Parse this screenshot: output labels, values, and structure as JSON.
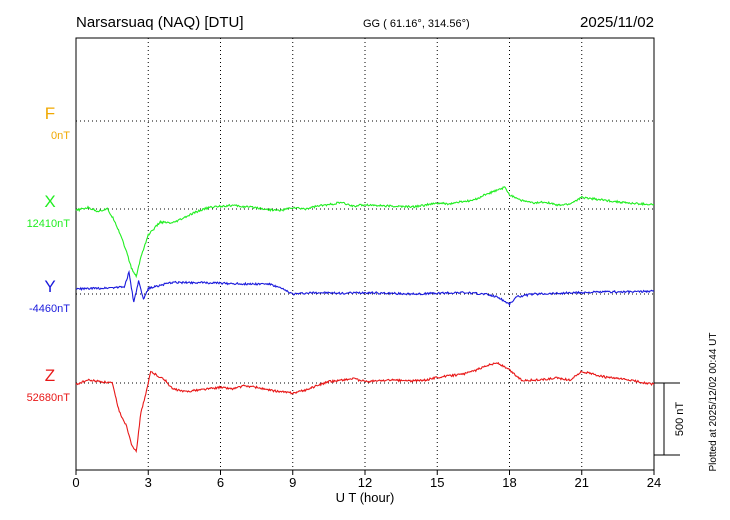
{
  "header": {
    "station": "Narsarsuaq (NAQ)  [DTU]",
    "coords": "GG ( 61.16°, 314.56°)",
    "date": "2025/11/02"
  },
  "side_note": "Plotted at 2025/12/02 00:44 UT",
  "colors": {
    "F": "#f0a800",
    "X": "#22ee22",
    "Y": "#1a1adc",
    "Z": "#e81818"
  },
  "chart_data": {
    "type": "line",
    "xlabel": "U T (hour)",
    "xlim": [
      0,
      24
    ],
    "xticks": [
      "0",
      "3",
      "6",
      "9",
      "12",
      "15",
      "18",
      "21",
      "24"
    ],
    "grid": true,
    "scale_bar": {
      "label": "500 nT",
      "value_nT": 500
    },
    "series": [
      {
        "name": "F",
        "baseline": "0nT",
        "color": "#f0a800",
        "points": []
      },
      {
        "name": "X",
        "baseline": "12410nT",
        "color": "#22ee22",
        "points": [
          [
            0,
            -10
          ],
          [
            0.5,
            10
          ],
          [
            0.9,
            -15
          ],
          [
            1.3,
            0
          ],
          [
            1.6,
            -80
          ],
          [
            1.9,
            -200
          ],
          [
            2.1,
            -300
          ],
          [
            2.3,
            -410
          ],
          [
            2.5,
            -470
          ],
          [
            2.7,
            -330
          ],
          [
            3.0,
            -180
          ],
          [
            3.5,
            -90
          ],
          [
            4,
            -100
          ],
          [
            4.5,
            -60
          ],
          [
            5,
            -20
          ],
          [
            5.5,
            10
          ],
          [
            6,
            20
          ],
          [
            6.5,
            25
          ],
          [
            7,
            15
          ],
          [
            7.5,
            10
          ],
          [
            8,
            -5
          ],
          [
            8.5,
            -10
          ],
          [
            9,
            10
          ],
          [
            9.5,
            0
          ],
          [
            10,
            20
          ],
          [
            10.5,
            30
          ],
          [
            11,
            45
          ],
          [
            11.5,
            20
          ],
          [
            12,
            30
          ],
          [
            13,
            20
          ],
          [
            14,
            15
          ],
          [
            15,
            40
          ],
          [
            15.5,
            35
          ],
          [
            16,
            50
          ],
          [
            16.5,
            60
          ],
          [
            17,
            100
          ],
          [
            17.5,
            130
          ],
          [
            17.8,
            150
          ],
          [
            18,
            100
          ],
          [
            18.5,
            60
          ],
          [
            19,
            40
          ],
          [
            19.5,
            50
          ],
          [
            20,
            25
          ],
          [
            20.5,
            35
          ],
          [
            21,
            80
          ],
          [
            21.5,
            70
          ],
          [
            22,
            60
          ],
          [
            23,
            40
          ],
          [
            24,
            30
          ]
        ]
      },
      {
        "name": "Y",
        "baseline": "-4460nT",
        "color": "#1a1adc",
        "points": [
          [
            0,
            35
          ],
          [
            1,
            40
          ],
          [
            1.5,
            45
          ],
          [
            2,
            50
          ],
          [
            2.2,
            150
          ],
          [
            2.4,
            -60
          ],
          [
            2.6,
            90
          ],
          [
            2.8,
            -40
          ],
          [
            3,
            40
          ],
          [
            3.5,
            60
          ],
          [
            4,
            80
          ],
          [
            5,
            80
          ],
          [
            6,
            75
          ],
          [
            7,
            70
          ],
          [
            8,
            70
          ],
          [
            8.5,
            40
          ],
          [
            9,
            0
          ],
          [
            9.5,
            5
          ],
          [
            10,
            10
          ],
          [
            11,
            5
          ],
          [
            12,
            10
          ],
          [
            13,
            5
          ],
          [
            14,
            0
          ],
          [
            15,
            5
          ],
          [
            16,
            10
          ],
          [
            17,
            0
          ],
          [
            17.5,
            -20
          ],
          [
            18,
            -70
          ],
          [
            18.3,
            -20
          ],
          [
            19,
            0
          ],
          [
            20,
            5
          ],
          [
            21,
            10
          ],
          [
            22,
            15
          ],
          [
            23,
            15
          ],
          [
            24,
            20
          ]
        ]
      },
      {
        "name": "Z",
        "baseline": "52680nT",
        "color": "#e81818",
        "points": [
          [
            0,
            -10
          ],
          [
            0.5,
            20
          ],
          [
            1,
            10
          ],
          [
            1.5,
            0
          ],
          [
            1.8,
            -200
          ],
          [
            2.1,
            -300
          ],
          [
            2.3,
            -420
          ],
          [
            2.5,
            -480
          ],
          [
            2.7,
            -200
          ],
          [
            2.9,
            -80
          ],
          [
            3.1,
            80
          ],
          [
            3.4,
            50
          ],
          [
            3.7,
            20
          ],
          [
            4,
            -40
          ],
          [
            4.5,
            -60
          ],
          [
            5,
            -50
          ],
          [
            5.5,
            -40
          ],
          [
            6,
            -30
          ],
          [
            6.5,
            -40
          ],
          [
            7,
            -20
          ],
          [
            7.5,
            -30
          ],
          [
            8,
            -50
          ],
          [
            8.5,
            -60
          ],
          [
            9,
            -70
          ],
          [
            9.5,
            -50
          ],
          [
            10,
            -20
          ],
          [
            10.5,
            10
          ],
          [
            11,
            20
          ],
          [
            11.5,
            30
          ],
          [
            12,
            10
          ],
          [
            13,
            20
          ],
          [
            14,
            15
          ],
          [
            14.5,
            20
          ],
          [
            15,
            40
          ],
          [
            15.5,
            50
          ],
          [
            16,
            60
          ],
          [
            16.5,
            80
          ],
          [
            17,
            120
          ],
          [
            17.5,
            140
          ],
          [
            18,
            90
          ],
          [
            18.5,
            20
          ],
          [
            19,
            20
          ],
          [
            19.5,
            25
          ],
          [
            20,
            35
          ],
          [
            20.5,
            20
          ],
          [
            21,
            80
          ],
          [
            21.5,
            60
          ],
          [
            22,
            40
          ],
          [
            23,
            20
          ],
          [
            24,
            -10
          ]
        ]
      }
    ]
  }
}
